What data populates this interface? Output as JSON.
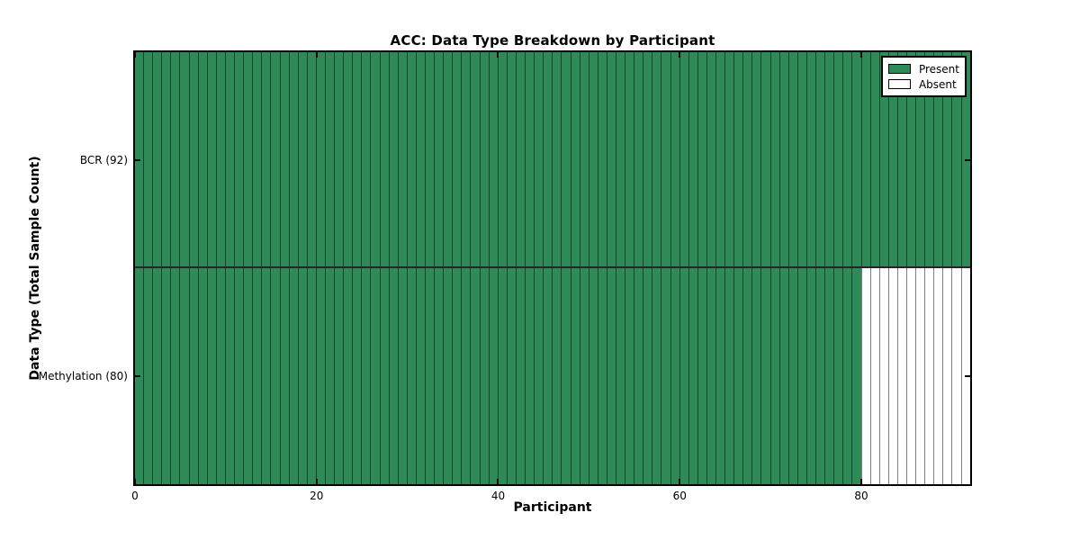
{
  "chart_data": {
    "type": "heatmap",
    "title": "ACC: Data Type Breakdown by Participant",
    "xlabel": "Participant",
    "ylabel": "Data Type (Total Sample Count)",
    "n_participants": 92,
    "x_ticks": [
      0,
      20,
      40,
      60,
      80
    ],
    "rows": [
      {
        "label": "BCR (92)",
        "present_count": 92
      },
      {
        "label": "Methylation (80)",
        "present_count": 80
      }
    ],
    "legend": {
      "position": "upper right",
      "entries": [
        {
          "label": "Present",
          "color": "#2e8b57"
        },
        {
          "label": "Absent",
          "color": "#ffffff"
        }
      ]
    },
    "colors": {
      "present": "#2e8b57",
      "absent": "#ffffff",
      "cell_edge": "rgba(0,0,0,0.5)",
      "frame": "#000000",
      "background": "#ffffff"
    }
  }
}
